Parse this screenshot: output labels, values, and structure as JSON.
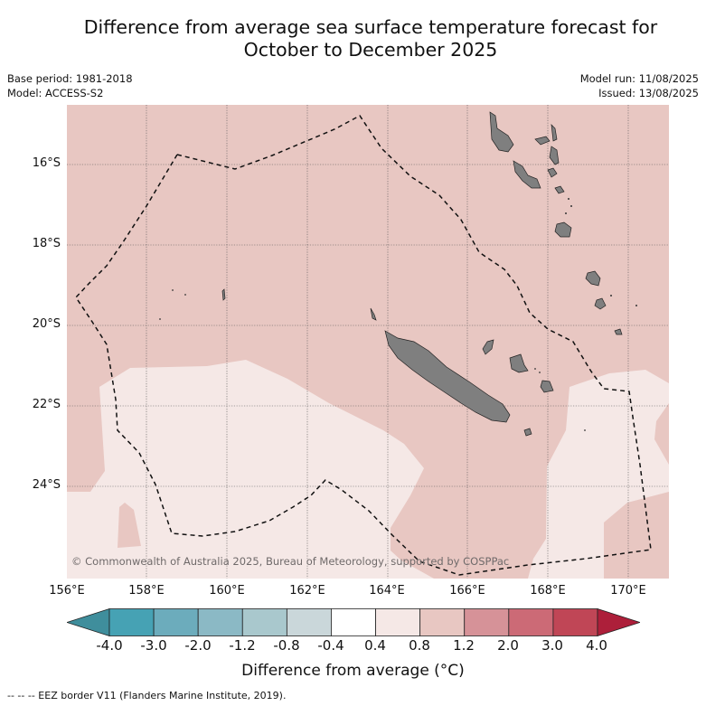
{
  "header": {
    "title_line1": "Difference from average sea surface temperature forecast for",
    "title_line2": "October to December 2025",
    "base_period": "Base period: 1981-2018",
    "model": "Model: ACCESS-S2",
    "model_run": "Model run: 11/08/2025",
    "issued": "Issued: 13/08/2025"
  },
  "map": {
    "lat_labels": [
      "16°S",
      "18°S",
      "20°S",
      "22°S",
      "24°S"
    ],
    "lon_labels": [
      "156°E",
      "158°E",
      "160°E",
      "162°E",
      "164°E",
      "166°E",
      "168°E",
      "170°E"
    ],
    "copyright": "© Commonwealth of Australia 2025, Bureau of Meteorology, supported by COSPPac",
    "colors": {
      "anomaly_04_08": "#f5e8e6",
      "anomaly_08_12": "#e8c7c2",
      "land": "#7f7f7f"
    }
  },
  "colorbar": {
    "title": "Difference from average (°C)",
    "tick_labels": [
      "-4.0",
      "-3.0",
      "-2.0",
      "-1.2",
      "-0.8",
      "-0.4",
      "0.4",
      "0.8",
      "1.2",
      "2.0",
      "3.0",
      "4.0"
    ],
    "colors": [
      "#3f8e9c",
      "#46a2b4",
      "#6cacbc",
      "#8bb9c5",
      "#a9c8cd",
      "#cad7da",
      "#ffffff",
      "#f5e8e6",
      "#e8c7c2",
      "#d69298",
      "#cc6a76",
      "#c04656",
      "#ad1f3a"
    ]
  },
  "footer": {
    "legend": "--  --  -- EEZ border V11 (Flanders Marine Institute, 2019)."
  }
}
